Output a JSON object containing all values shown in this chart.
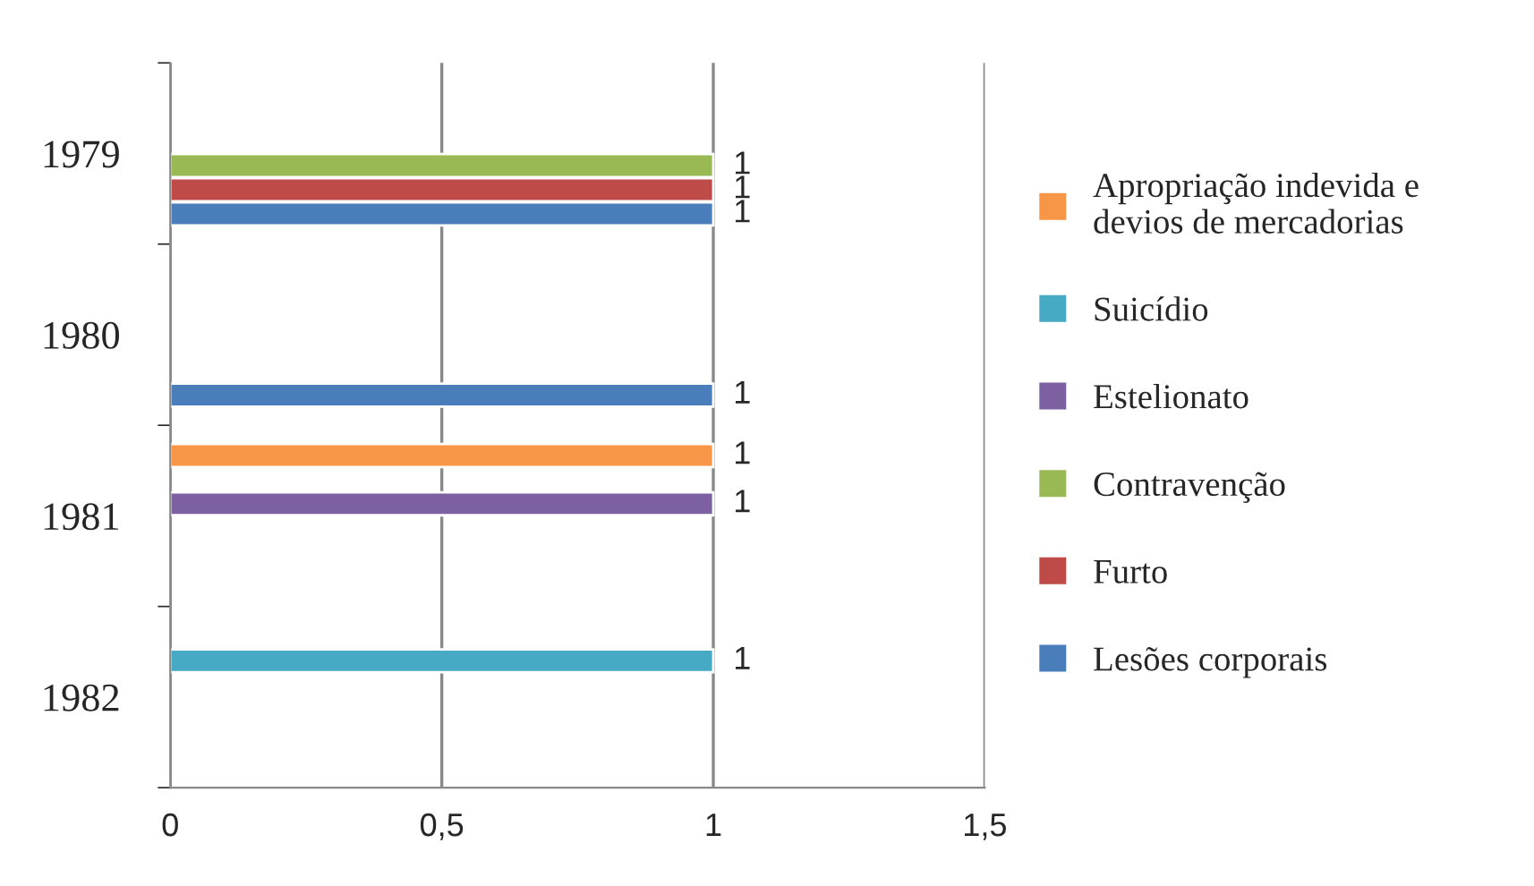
{
  "chart_data": {
    "type": "bar",
    "orientation": "horizontal",
    "categories": [
      "1979",
      "1980",
      "1981",
      "1982"
    ],
    "series": [
      {
        "name": "Lesões corporais",
        "color": "#4a7ebb",
        "values": [
          1,
          1,
          null,
          null
        ]
      },
      {
        "name": "Furto",
        "color": "#be4b48",
        "values": [
          1,
          null,
          null,
          null
        ]
      },
      {
        "name": "Contravenção",
        "color": "#98b954",
        "values": [
          1,
          null,
          null,
          null
        ]
      },
      {
        "name": "Estelionato",
        "color": "#7d60a0",
        "values": [
          null,
          null,
          1,
          null
        ]
      },
      {
        "name": "Suicídio",
        "color": "#46aac5",
        "values": [
          null,
          null,
          null,
          1
        ]
      },
      {
        "name": "Apropriação indevida e devios de mercadorias",
        "color": "#f79646",
        "values": [
          null,
          null,
          1,
          null
        ]
      }
    ],
    "xlim": [
      0,
      1.5
    ],
    "xticks": [
      0,
      {
        "value": 0.5,
        "label": "0,5"
      },
      1,
      {
        "value": 1.5,
        "label": "1,5"
      }
    ],
    "grid": "x",
    "legend": "right",
    "data_labels": true
  }
}
